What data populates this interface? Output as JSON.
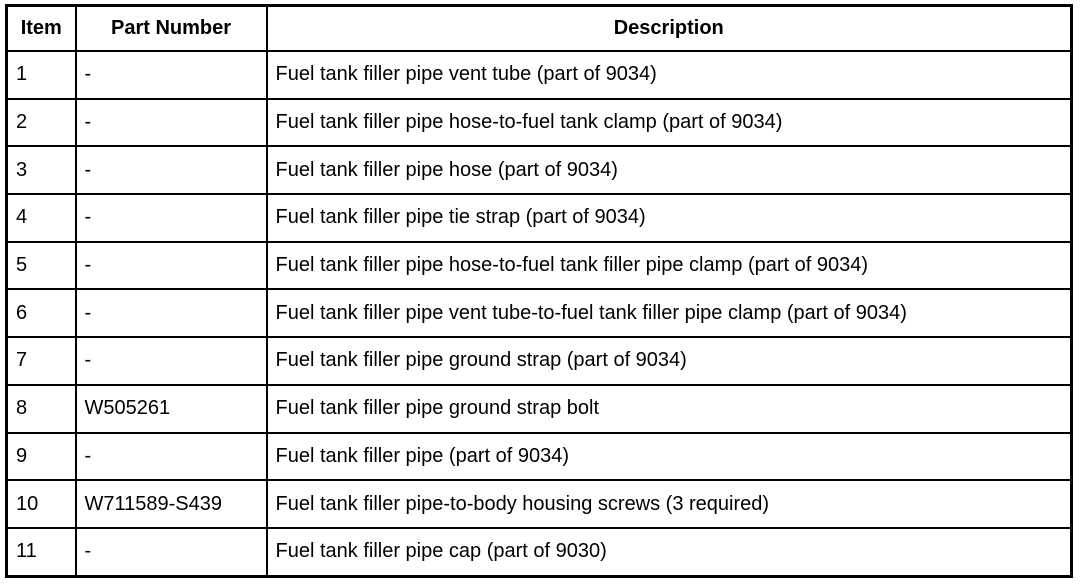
{
  "table": {
    "headers": [
      "Item",
      "Part Number",
      "Description"
    ],
    "rows": [
      [
        "1",
        "-",
        "Fuel tank filler pipe vent tube (part of 9034)"
      ],
      [
        "2",
        "-",
        "Fuel tank filler pipe hose-to-fuel tank clamp (part of 9034)"
      ],
      [
        "3",
        "-",
        "Fuel tank filler pipe hose (part of 9034)"
      ],
      [
        "4",
        "-",
        "Fuel tank filler pipe tie strap (part of 9034)"
      ],
      [
        "5",
        "-",
        "Fuel tank filler pipe hose-to-fuel tank filler pipe clamp (part of 9034)"
      ],
      [
        "6",
        "-",
        "Fuel tank filler pipe vent tube-to-fuel tank filler pipe clamp (part of 9034)"
      ],
      [
        "7",
        "-",
        "Fuel tank filler pipe ground strap (part of 9034)"
      ],
      [
        "8",
        "W505261",
        "Fuel tank filler pipe ground strap bolt"
      ],
      [
        "9",
        "-",
        "Fuel tank filler pipe (part of 9034)"
      ],
      [
        "10",
        "W711589-S439",
        "Fuel tank filler pipe-to-body housing screws (3 required)"
      ],
      [
        "11",
        "-",
        "Fuel tank filler pipe cap (part of 9030)"
      ]
    ]
  }
}
